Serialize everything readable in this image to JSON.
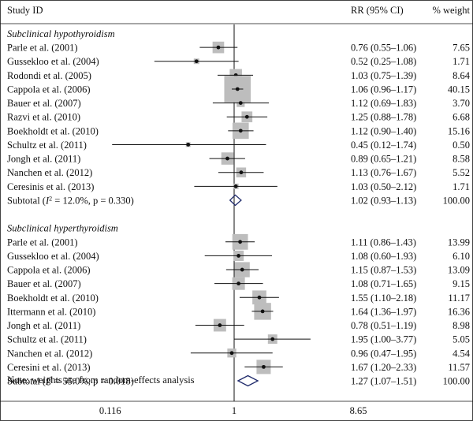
{
  "chart_data": {
    "type": "forest",
    "headers": {
      "study": "Study ID",
      "effect": "RR (95% CI)",
      "weight": "% weight"
    },
    "x_scale": "log",
    "x_ticks": [
      "0.116",
      "1",
      "8.65"
    ],
    "null_value": 1,
    "groups": [
      {
        "title": "Subclinical hypothyroidism",
        "studies": [
          {
            "label": "Parle et al. (2001)",
            "rr": 0.76,
            "lo": 0.55,
            "hi": 1.06,
            "ci_text": "0.76 (0.55–1.06)",
            "weight": "7.65"
          },
          {
            "label": "Gussekloo et al. (2004)",
            "rr": 0.52,
            "lo": 0.25,
            "hi": 1.08,
            "ci_text": "0.52 (0.25–1.08)",
            "weight": "1.71"
          },
          {
            "label": "Rodondi et al. (2005)",
            "rr": 1.03,
            "lo": 0.75,
            "hi": 1.39,
            "ci_text": "1.03 (0.75–1.39)",
            "weight": "8.64"
          },
          {
            "label": "Cappola et al. (2006)",
            "rr": 1.06,
            "lo": 0.96,
            "hi": 1.17,
            "ci_text": "1.06 (0.96–1.17)",
            "weight": "40.15"
          },
          {
            "label": "Bauer et al. (2007)",
            "rr": 1.12,
            "lo": 0.69,
            "hi": 1.83,
            "ci_text": "1.12 (0.69–1.83)",
            "weight": "3.70"
          },
          {
            "label": "Razvi et al. (2010)",
            "rr": 1.25,
            "lo": 0.88,
            "hi": 1.78,
            "ci_text": "1.25 (0.88–1.78)",
            "weight": "6.68"
          },
          {
            "label": "Boekholdt et al. (2010)",
            "rr": 1.12,
            "lo": 0.9,
            "hi": 1.4,
            "ci_text": "1.12 (0.90–1.40)",
            "weight": "15.16"
          },
          {
            "label": "Schultz et al. (2011)",
            "rr": 0.45,
            "lo": 0.12,
            "hi": 1.74,
            "ci_text": "0.45 (0.12–1.74)",
            "weight": "0.50"
          },
          {
            "label": "Jongh et al. (2011)",
            "rr": 0.89,
            "lo": 0.65,
            "hi": 1.21,
            "ci_text": "0.89 (0.65–1.21)",
            "weight": "8.58"
          },
          {
            "label": "Nanchen et al. (2012)",
            "rr": 1.13,
            "lo": 0.76,
            "hi": 1.67,
            "ci_text": "1.13 (0.76–1.67)",
            "weight": "5.52"
          },
          {
            "label": "Ceresinis et al. (2013)",
            "rr": 1.03,
            "lo": 0.5,
            "hi": 2.12,
            "ci_text": "1.03 (0.50–2.12)",
            "weight": "1.71"
          }
        ],
        "subtotal": {
          "label_prefix": "Subtotal (",
          "i2_symbol": "I",
          "i2_exp": "2",
          "label_suffix": " = 12.0%, p = 0.330)",
          "rr": 1.02,
          "lo": 0.93,
          "hi": 1.13,
          "ci_text": "1.02 (0.93–1.13)",
          "weight": "100.00"
        }
      },
      {
        "title": "Subclinical hyperthyroidism",
        "studies": [
          {
            "label": "Parle et al. (2001)",
            "rr": 1.11,
            "lo": 0.86,
            "hi": 1.43,
            "ci_text": "1.11 (0.86–1.43)",
            "weight": "13.99"
          },
          {
            "label": "Gussekloo et al. (2004)",
            "rr": 1.08,
            "lo": 0.6,
            "hi": 1.93,
            "ci_text": "1.08 (0.60–1.93)",
            "weight": "6.10"
          },
          {
            "label": "Cappola et al. (2006)",
            "rr": 1.15,
            "lo": 0.87,
            "hi": 1.53,
            "ci_text": "1.15 (0.87–1.53)",
            "weight": "13.09"
          },
          {
            "label": "Bauer et al. (2007)",
            "rr": 1.08,
            "lo": 0.71,
            "hi": 1.65,
            "ci_text": "1.08 (0.71–1.65)",
            "weight": "9.15"
          },
          {
            "label": "Boekholdt et al. (2010)",
            "rr": 1.55,
            "lo": 1.1,
            "hi": 2.18,
            "ci_text": "1.55 (1.10–2.18)",
            "weight": "11.17"
          },
          {
            "label": "Ittermann et al. (2010)",
            "rr": 1.64,
            "lo": 1.36,
            "hi": 1.97,
            "ci_text": "1.64 (1.36–1.97)",
            "weight": "16.36"
          },
          {
            "label": "Jongh et al. (2011)",
            "rr": 0.78,
            "lo": 0.51,
            "hi": 1.19,
            "ci_text": "0.78 (0.51–1.19)",
            "weight": "8.98"
          },
          {
            "label": "Schultz et al. (2011)",
            "rr": 1.95,
            "lo": 1.0,
            "hi": 3.77,
            "ci_text": "1.95 (1.00–3.77)",
            "weight": "5.05"
          },
          {
            "label": "Nanchen et al. (2012)",
            "rr": 0.96,
            "lo": 0.47,
            "hi": 1.95,
            "ci_text": "0.96 (0.47–1.95)",
            "weight": "4.54"
          },
          {
            "label": "Ceresini et al. (2013)",
            "rr": 1.67,
            "lo": 1.2,
            "hi": 2.33,
            "ci_text": "1.67 (1.20–2.33)",
            "weight": "11.57"
          }
        ],
        "subtotal": {
          "label_prefix": "Subtotal (",
          "i2_symbol": "I",
          "i2_exp": "2",
          "label_suffix": " = 55.0%, p = 0.018)",
          "rr": 1.27,
          "lo": 1.07,
          "hi": 1.51,
          "ci_text": "1.27 (1.07–1.51)",
          "weight": "100.00"
        }
      }
    ],
    "note": "Note: weights are from random-effects analysis",
    "colors": {
      "box": "#bdbdbd",
      "diamond": "#1f2a6b",
      "line": "#111111",
      "point": "#111111"
    }
  }
}
